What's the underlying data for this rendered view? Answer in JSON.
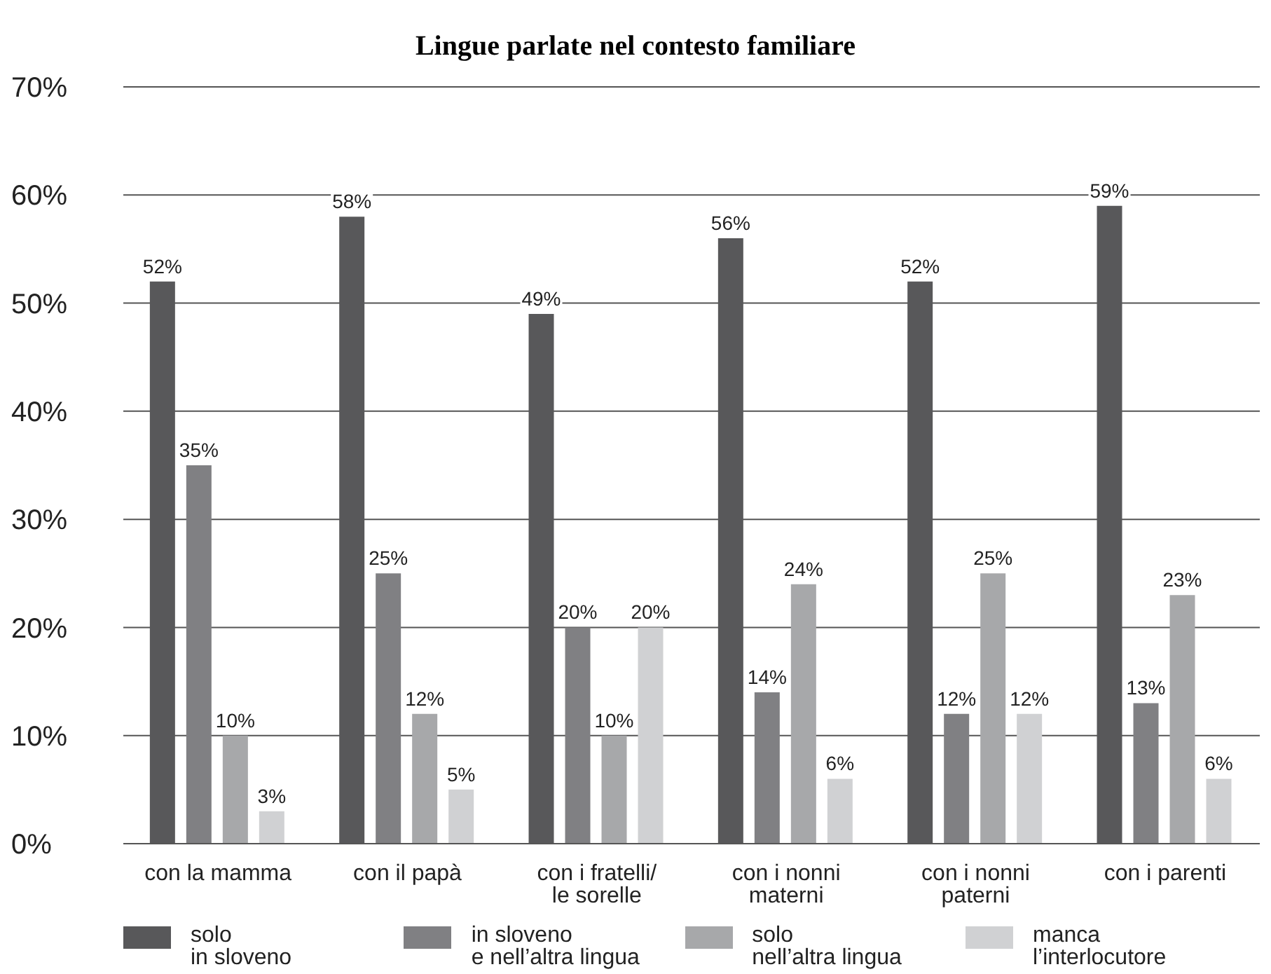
{
  "chart_data": {
    "type": "bar",
    "title": "Lingue parlate nel contesto familiare",
    "categories": [
      "con la mamma",
      "con il papà",
      "con i fratelli/\nle sorelle",
      "con i nonni\nmaterni",
      "con i nonni\npaterni",
      "con i parenti"
    ],
    "series": [
      {
        "name": "solo\nin sloveno",
        "color": "#58585a",
        "values": [
          52,
          58,
          49,
          56,
          52,
          59
        ],
        "value_labels": [
          "52%",
          "58%",
          "49%",
          "56%",
          "52%",
          "59%"
        ]
      },
      {
        "name": "in sloveno\ne nell’altra lingua",
        "color": "#808083",
        "values": [
          35,
          25,
          20,
          14,
          12,
          13
        ],
        "value_labels": [
          "35%",
          "25%",
          "20%",
          "14%",
          "12%",
          "13%"
        ]
      },
      {
        "name": "solo\nnell’altra lingua",
        "color": "#a7a8aa",
        "values": [
          10,
          12,
          10,
          24,
          25,
          23
        ],
        "value_labels": [
          "10%",
          "12%",
          "10%",
          "24%",
          "25%",
          "23%"
        ]
      },
      {
        "name": "manca\nl’interlocutore",
        "color": "#d0d1d3",
        "values": [
          3,
          5,
          20,
          6,
          12,
          6
        ],
        "value_labels": [
          "3%",
          "5%",
          "20%",
          "6%",
          "12%",
          "6%"
        ]
      }
    ],
    "ylim": [
      0,
      70
    ],
    "yticks": [
      {
        "value": 0,
        "label": "0%"
      },
      {
        "value": 10,
        "label": "10%"
      },
      {
        "value": 20,
        "label": "20%"
      },
      {
        "value": 30,
        "label": "30%"
      },
      {
        "value": 40,
        "label": "40%"
      },
      {
        "value": 50,
        "label": "50%"
      },
      {
        "value": 60,
        "label": "60%"
      },
      {
        "value": 70,
        "label": "70%"
      }
    ],
    "grid": "y",
    "legend": "bottom"
  }
}
